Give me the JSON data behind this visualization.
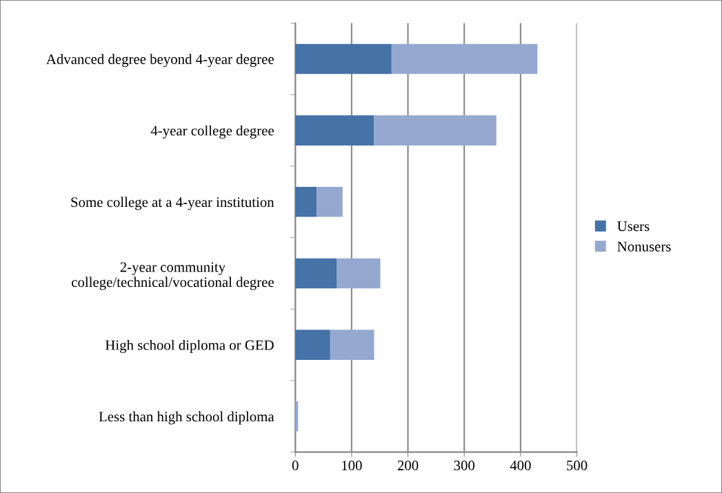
{
  "chart_data": {
    "type": "bar",
    "orientation": "horizontal",
    "stacked": true,
    "categories": [
      "Advanced degree beyond 4-year degree",
      "4-year college degree",
      "Some college at a 4-year institution",
      "2-year community college/technical/vocational degree",
      "High school diploma or GED",
      "Less than high school diploma"
    ],
    "series": [
      {
        "name": "Users",
        "color": "#4572a7",
        "values": [
          171,
          140,
          38,
          74,
          62,
          0
        ]
      },
      {
        "name": "Nonusers",
        "color": "#95a9d0",
        "values": [
          259,
          217,
          46,
          77,
          78,
          5
        ]
      }
    ],
    "xlim": [
      0,
      500
    ],
    "xticks": [
      0,
      100,
      200,
      300,
      400,
      500
    ],
    "grid": "x",
    "legend": "right"
  }
}
